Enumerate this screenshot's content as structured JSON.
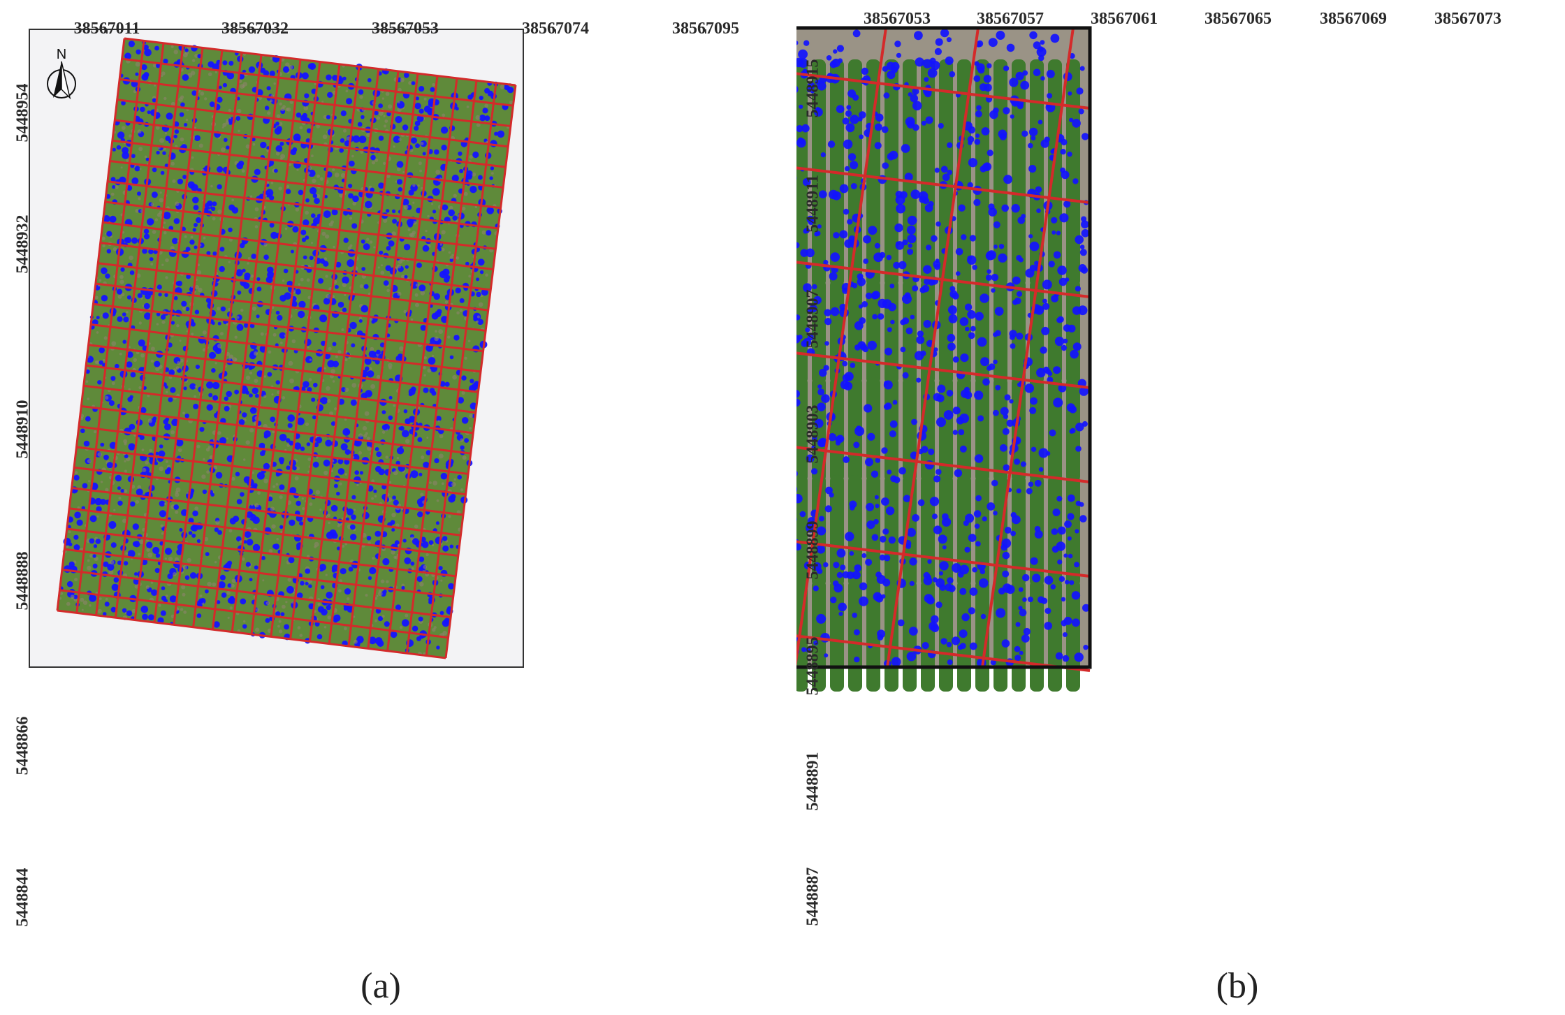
{
  "panel_a": {
    "caption": "(a)",
    "x_ticks": [
      "38567011",
      "38567032",
      "38567053",
      "38567074",
      "38567095"
    ],
    "y_ticks": [
      "5448954",
      "5448932",
      "5448910",
      "5448888",
      "5448866",
      "5448844"
    ],
    "north_arrow_label": "N",
    "colors": {
      "background": "#f3f3f5",
      "grid_lines": "#d42a2a",
      "crop": "#5f8a3a",
      "detections": "#1414ff",
      "soil": "#8f8370"
    }
  },
  "panel_b": {
    "caption": "(b)",
    "x_ticks": [
      "38567053",
      "38567057",
      "38567061",
      "38567065",
      "38567069",
      "38567073"
    ],
    "y_ticks": [
      "5448915",
      "5448911",
      "5448907",
      "5448903",
      "5448899",
      "5448895",
      "5448891",
      "5448887"
    ],
    "colors": {
      "frame": "#111111",
      "grid_lines": "#d42a2a",
      "crop": "#3f7a2e",
      "detections": "#1212ff",
      "soil": "#9a9386"
    }
  }
}
